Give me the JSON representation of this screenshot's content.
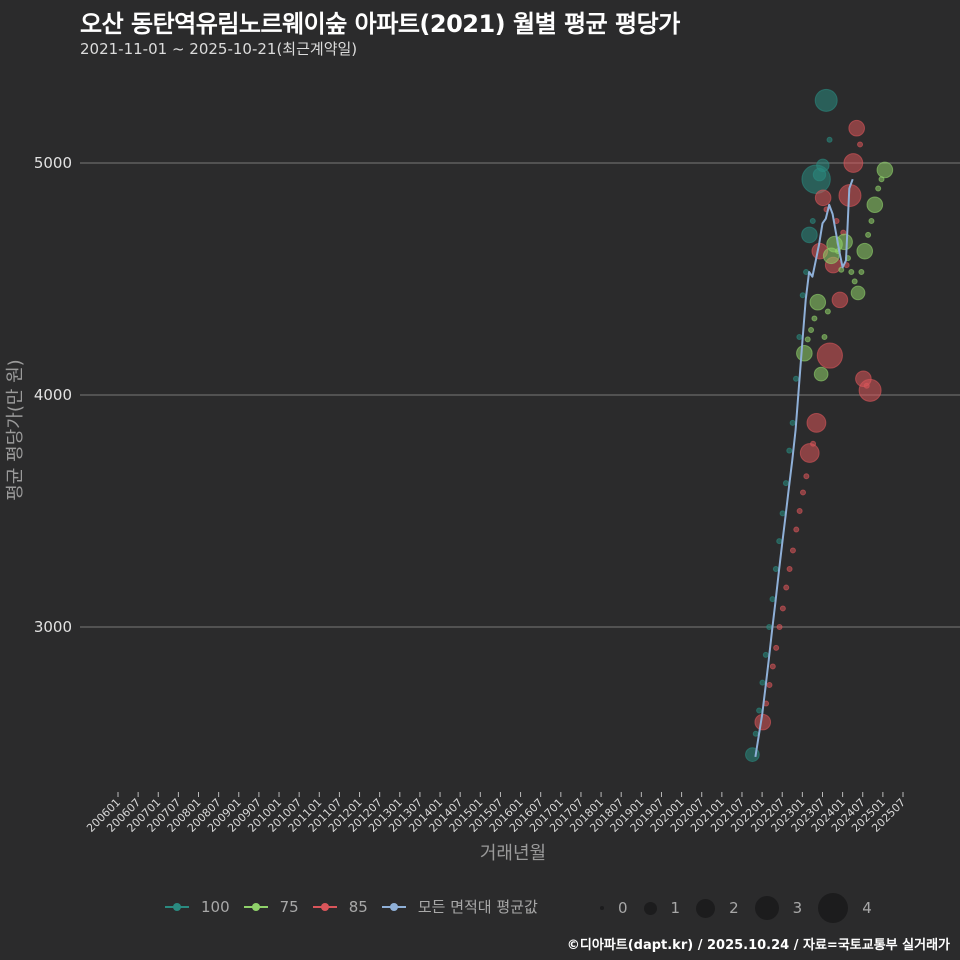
{
  "header": {
    "title": "오산 동탄역유림노르웨이숲 아파트(2021) 월별 평균 평당가",
    "subtitle": "2021-11-01 ~ 2025-10-21(최근계약일)"
  },
  "footer": {
    "credit": "©디아파트(dapt.kr) / 2025.10.24 / 자료=국토교통부 실거래가"
  },
  "legend": {
    "series": [
      {
        "label": "100",
        "color": "#2a8a80"
      },
      {
        "label": "75",
        "color": "#8fd16a"
      },
      {
        "label": "85",
        "color": "#d9555a"
      },
      {
        "label": "모든 면적대 평균값",
        "color": "#8fb0d8"
      }
    ],
    "sizes": [
      {
        "label": "0",
        "px": 4
      },
      {
        "label": "1",
        "px": 13
      },
      {
        "label": "2",
        "px": 19
      },
      {
        "label": "3",
        "px": 24
      },
      {
        "label": "4",
        "px": 30
      }
    ]
  },
  "colors": {
    "background": "#2b2b2c",
    "grid": "#6a6a6a",
    "s100": "#2a8a80",
    "s75": "#8fd16a",
    "s85": "#d9555a",
    "avg": "#8fb0d8"
  },
  "chart_data": {
    "type": "line",
    "title": "오산 동탄역유림노르웨이숲 아파트(2021) 월별 평균 평당가",
    "subtitle": "2021-11-01 ~ 2025-10-21(최근계약일)",
    "xlabel": "거래년월",
    "ylabel": "평균 평당가(만 원)",
    "ylim": [
      2330,
      5400
    ],
    "yticks": [
      3000,
      4000,
      5000
    ],
    "grid": true,
    "legend_position": "bottom",
    "xticks": [
      "200601",
      "200607",
      "200701",
      "200707",
      "200801",
      "200807",
      "200901",
      "200907",
      "201001",
      "201007",
      "201101",
      "201107",
      "201201",
      "201207",
      "201301",
      "201307",
      "201401",
      "201407",
      "201501",
      "201507",
      "201601",
      "201607",
      "201701",
      "201707",
      "201801",
      "201807",
      "201901",
      "201907",
      "202001",
      "202007",
      "202101",
      "202107",
      "202201",
      "202207",
      "202301",
      "202307",
      "202401",
      "202407",
      "202501",
      "202507"
    ],
    "series": [
      {
        "name": "모든 면적대 평균값",
        "kind": "line",
        "points": [
          [
            "202111",
            2440
          ],
          [
            "202112",
            2530
          ],
          [
            "202201",
            2620
          ],
          [
            "202202",
            2740
          ],
          [
            "202203",
            2860
          ],
          [
            "202204",
            2990
          ],
          [
            "202205",
            3110
          ],
          [
            "202206",
            3240
          ],
          [
            "202207",
            3360
          ],
          [
            "202208",
            3480
          ],
          [
            "202209",
            3600
          ],
          [
            "202210",
            3720
          ],
          [
            "202211",
            3850
          ],
          [
            "202212",
            4040
          ],
          [
            "202301",
            4230
          ],
          [
            "202302",
            4410
          ],
          [
            "202303",
            4530
          ],
          [
            "202304",
            4510
          ],
          [
            "202305",
            4580
          ],
          [
            "202306",
            4650
          ],
          [
            "202307",
            4740
          ],
          [
            "202308",
            4760
          ],
          [
            "202309",
            4820
          ],
          [
            "202310",
            4780
          ],
          [
            "202311",
            4700
          ],
          [
            "202312",
            4620
          ],
          [
            "202401",
            4550
          ],
          [
            "202402",
            4580
          ],
          [
            "202403",
            4890
          ],
          [
            "202404",
            4930
          ]
        ]
      },
      {
        "name": "100",
        "kind": "bubble",
        "points": [
          [
            "202111",
            2450,
            1.2
          ],
          [
            "202112",
            2540,
            0
          ],
          [
            "202201",
            2640,
            0
          ],
          [
            "202202",
            2760,
            0
          ],
          [
            "202203",
            2880,
            0
          ],
          [
            "202204",
            3000,
            0
          ],
          [
            "202205",
            3120,
            0
          ],
          [
            "202206",
            3250,
            0
          ],
          [
            "202207",
            3370,
            0
          ],
          [
            "202208",
            3490,
            0
          ],
          [
            "202209",
            3620,
            0
          ],
          [
            "202210",
            3760,
            0
          ],
          [
            "202211",
            3880,
            0
          ],
          [
            "202212",
            4070,
            0
          ],
          [
            "202301",
            4250,
            0
          ],
          [
            "202302",
            4430,
            0
          ],
          [
            "202303",
            4530,
            0
          ],
          [
            "202304",
            4690,
            1.5
          ],
          [
            "202305",
            4750,
            0
          ],
          [
            "202306",
            4930,
            3.5
          ],
          [
            "202307",
            4950,
            1
          ],
          [
            "202308",
            4990,
            1
          ],
          [
            "202309",
            5270,
            2.5
          ],
          [
            "202310",
            5100,
            0
          ]
        ]
      },
      {
        "name": "85",
        "kind": "bubble",
        "points": [
          [
            "202112",
            2590,
            1.5
          ],
          [
            "202201",
            2670,
            0
          ],
          [
            "202202",
            2750,
            0
          ],
          [
            "202203",
            2830,
            0
          ],
          [
            "202204",
            2910,
            0
          ],
          [
            "202205",
            3000,
            0
          ],
          [
            "202206",
            3080,
            0
          ],
          [
            "202207",
            3170,
            0
          ],
          [
            "202208",
            3250,
            0
          ],
          [
            "202209",
            3330,
            0
          ],
          [
            "202210",
            3420,
            0
          ],
          [
            "202211",
            3500,
            0
          ],
          [
            "202212",
            3580,
            0
          ],
          [
            "202301",
            3650,
            0
          ],
          [
            "202302",
            3750,
            2
          ],
          [
            "202303",
            3790,
            0
          ],
          [
            "202304",
            3880,
            2
          ],
          [
            "202305",
            4620,
            1.5
          ],
          [
            "202306",
            4850,
            1.5
          ],
          [
            "202307",
            4800,
            0
          ],
          [
            "202308",
            4170,
            3
          ],
          [
            "202309",
            4560,
            1.5
          ],
          [
            "202310",
            4750,
            0
          ],
          [
            "202311",
            4410,
            1.5
          ],
          [
            "202312",
            4700,
            0
          ],
          [
            "202401",
            4560,
            0
          ],
          [
            "202402",
            4860,
            2.5
          ],
          [
            "202403",
            5000,
            2
          ],
          [
            "202404",
            5150,
            1.5
          ],
          [
            "202405",
            5080,
            0
          ],
          [
            "202406",
            4070,
            1.5
          ],
          [
            "202407",
            4040,
            0
          ],
          [
            "202408",
            4020,
            2.5
          ]
        ]
      },
      {
        "name": "75",
        "kind": "bubble",
        "points": [
          [
            "202301",
            4180,
            1.5
          ],
          [
            "202302",
            4240,
            0
          ],
          [
            "202303",
            4280,
            0
          ],
          [
            "202304",
            4330,
            0
          ],
          [
            "202305",
            4400,
            1.5
          ],
          [
            "202306",
            4090,
            1.2
          ],
          [
            "202307",
            4250,
            0
          ],
          [
            "202308",
            4360,
            0
          ],
          [
            "202309",
            4600,
            1.5
          ],
          [
            "202310",
            4650,
            1.5
          ],
          [
            "202311",
            4620,
            0
          ],
          [
            "202312",
            4540,
            0
          ],
          [
            "202401",
            4660,
            1.5
          ],
          [
            "202402",
            4590,
            0
          ],
          [
            "202403",
            4530,
            0
          ],
          [
            "202404",
            4490,
            0
          ],
          [
            "202405",
            4440,
            1.2
          ],
          [
            "202406",
            4530,
            0
          ],
          [
            "202407",
            4620,
            1.5
          ],
          [
            "202408",
            4690,
            0
          ],
          [
            "202409",
            4750,
            0
          ],
          [
            "202410",
            4820,
            1.5
          ],
          [
            "202411",
            4890,
            0
          ],
          [
            "202412",
            4930,
            0
          ],
          [
            "202501",
            4970,
            1.5
          ]
        ]
      }
    ]
  }
}
